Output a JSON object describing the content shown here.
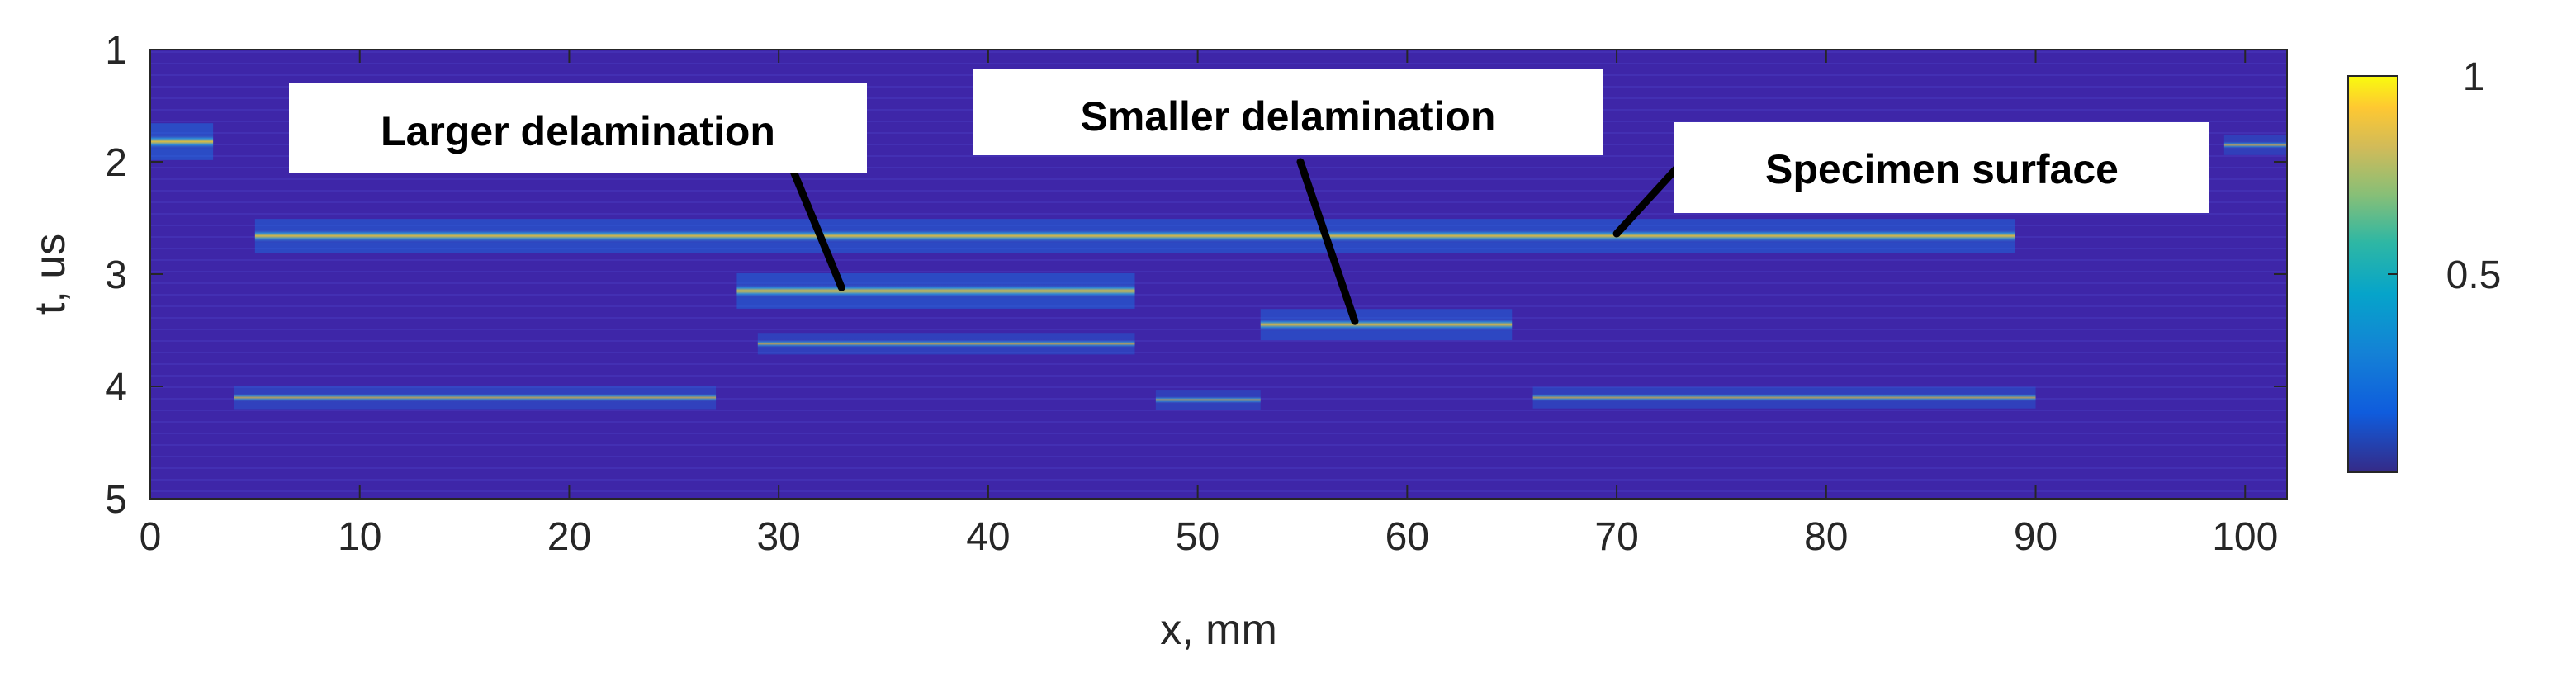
{
  "chart_data": {
    "type": "heatmap",
    "title": "",
    "xlabel": "x, mm",
    "ylabel": "t, us",
    "xlim": [
      0,
      102
    ],
    "ylim": [
      1,
      5
    ],
    "y_reversed": true,
    "x_ticks": [
      0,
      10,
      20,
      30,
      40,
      50,
      60,
      70,
      80,
      90,
      100
    ],
    "y_ticks": [
      1,
      2,
      3,
      4,
      5
    ],
    "colorbar": {
      "range": [
        0,
        1
      ],
      "ticks": [
        0.5,
        1
      ],
      "tick_labels": [
        "0.5",
        "1"
      ],
      "colormap": "parula"
    },
    "background_color": "#3e26a8",
    "features": [
      {
        "name": "surface-echo-left-edge",
        "x": [
          0,
          3
        ],
        "t": 1.82,
        "intensity": 0.9
      },
      {
        "name": "surface-echo-right-edge",
        "x": [
          99,
          102
        ],
        "t": 1.85,
        "intensity": 0.3
      },
      {
        "name": "specimen-surface",
        "x": [
          5,
          89
        ],
        "t": 2.66,
        "intensity": 0.8
      },
      {
        "name": "larger-delamination",
        "x": [
          28,
          47
        ],
        "t": 3.15,
        "intensity": 0.85
      },
      {
        "name": "smaller-delamination",
        "x": [
          53,
          65
        ],
        "t": 3.45,
        "intensity": 0.7
      },
      {
        "name": "larger-delamination-echo",
        "x": [
          29,
          47
        ],
        "t": 3.62,
        "intensity": 0.35
      },
      {
        "name": "back-wall-left",
        "x": [
          4,
          27
        ],
        "t": 4.1,
        "intensity": 0.4
      },
      {
        "name": "back-wall-middle",
        "x": [
          48,
          53
        ],
        "t": 4.12,
        "intensity": 0.3
      },
      {
        "name": "back-wall-right",
        "x": [
          66,
          90
        ],
        "t": 4.1,
        "intensity": 0.35
      }
    ],
    "annotations": [
      {
        "text": "Larger delamination",
        "x": 33,
        "t": 3.12
      },
      {
        "text": "Smaller delamination",
        "x": 57.5,
        "t": 3.42
      },
      {
        "text": "Specimen surface",
        "x": 70,
        "t": 2.64
      }
    ]
  }
}
